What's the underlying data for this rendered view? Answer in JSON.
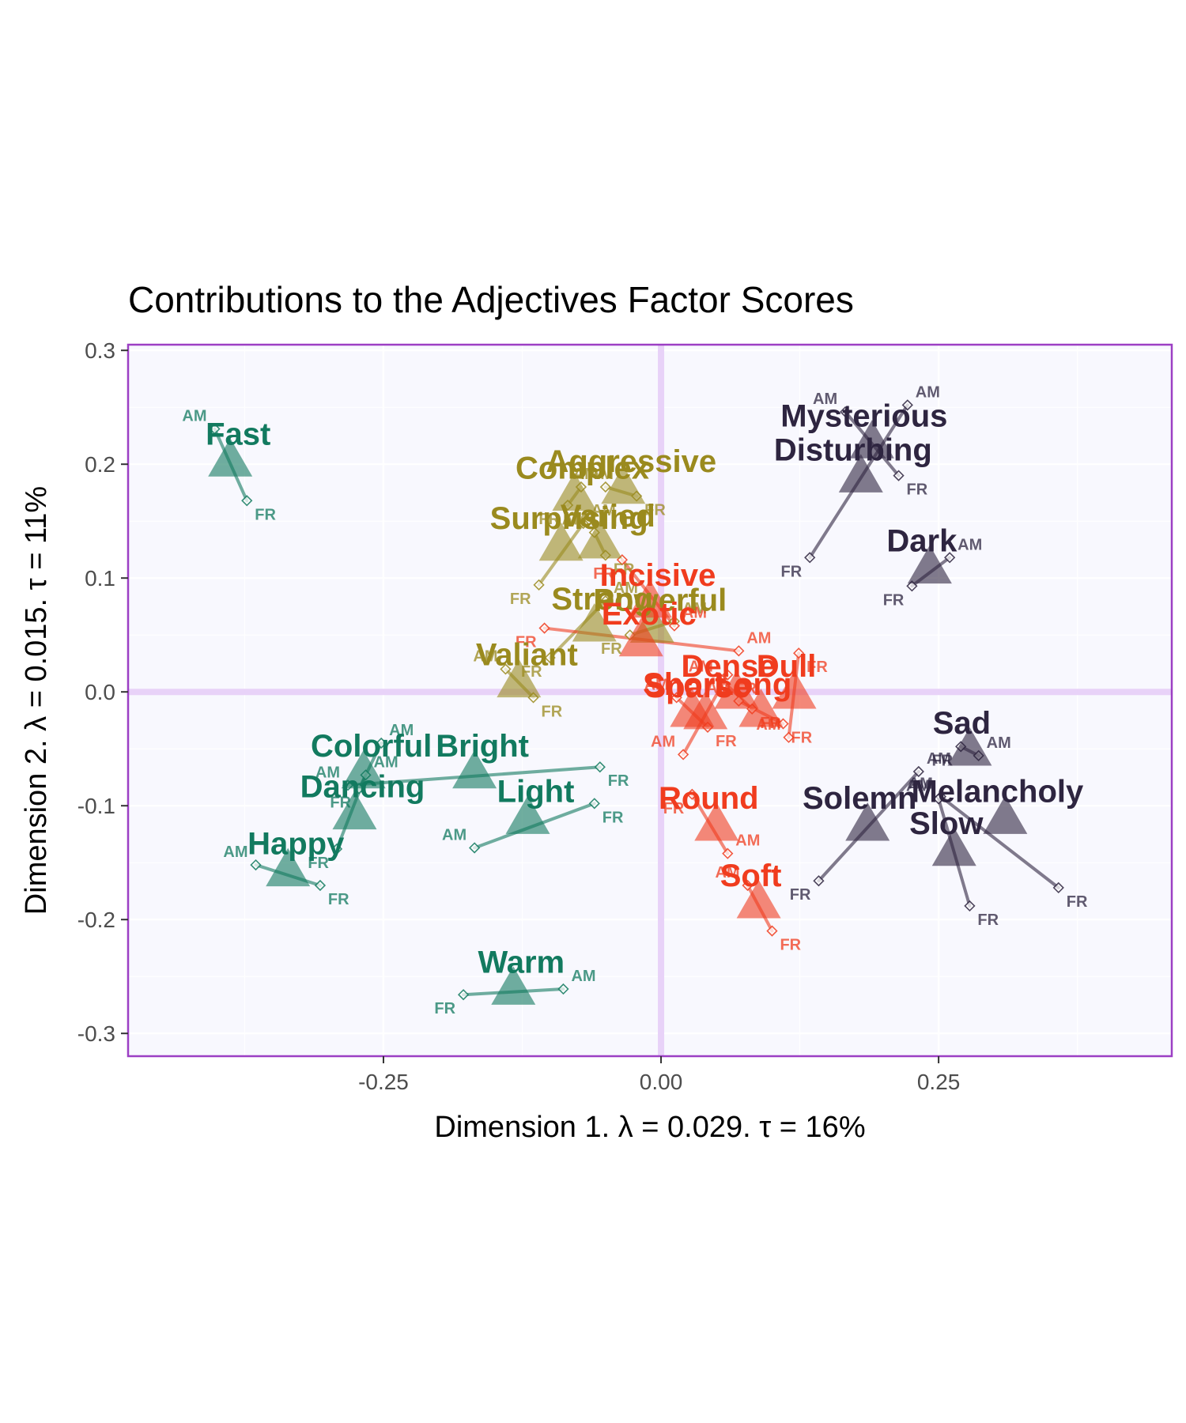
{
  "chart_data": {
    "type": "scatter",
    "title": "Contributions to the Adjectives Factor Scores",
    "xlabel": "Dimension 1.   λ = 0.029.  τ = 16%",
    "ylabel": "Dimension 2.   λ = 0.015.  τ = 11%",
    "xlim": [
      -0.48,
      0.46
    ],
    "ylim": [
      -0.32,
      0.305
    ],
    "x_ticks": [
      -0.25,
      0.0,
      0.25
    ],
    "x_tick_labels": [
      "-0.25",
      "0.00",
      "0.25"
    ],
    "y_ticks": [
      0.3,
      0.2,
      0.1,
      0.0,
      -0.1,
      -0.2,
      -0.3
    ],
    "y_tick_labels": [
      "0.3",
      "0.2",
      "0.1",
      "0.0",
      "-0.1",
      "-0.2",
      "-0.3"
    ],
    "grid": true,
    "origin_lines": true,
    "lang_labels": [
      "AM",
      "FR"
    ],
    "groups": [
      {
        "color": "#127a5f",
        "points": [
          {
            "label": "Fast",
            "x": -0.388,
            "y": 0.202,
            "am": {
              "x": -0.402,
              "y": 0.231
            },
            "fr": {
              "x": -0.373,
              "y": 0.168
            }
          },
          {
            "label": "Colorful",
            "x": -0.268,
            "y": -0.072,
            "am": {
              "x": -0.252,
              "y": -0.045
            },
            "fr": {
              "x": -0.272,
              "y": -0.085
            }
          },
          {
            "label": "Bright",
            "x": -0.168,
            "y": -0.072,
            "am": {
              "x": -0.282,
              "y": -0.082
            },
            "fr": {
              "x": -0.055,
              "y": -0.066
            }
          },
          {
            "label": "Dancing",
            "x": -0.276,
            "y": -0.108,
            "am": {
              "x": -0.266,
              "y": -0.073
            },
            "fr": {
              "x": -0.292,
              "y": -0.138
            }
          },
          {
            "label": "Light",
            "x": -0.12,
            "y": -0.112,
            "am": {
              "x": -0.168,
              "y": -0.137
            },
            "fr": {
              "x": -0.06,
              "y": -0.098
            }
          },
          {
            "label": "Happy",
            "x": -0.336,
            "y": -0.158,
            "am": {
              "x": -0.365,
              "y": -0.152
            },
            "fr": {
              "x": -0.307,
              "y": -0.17
            }
          },
          {
            "label": "Warm",
            "x": -0.133,
            "y": -0.262,
            "am": {
              "x": -0.088,
              "y": -0.261
            },
            "fr": {
              "x": -0.178,
              "y": -0.266
            }
          }
        ]
      },
      {
        "color": "#9a8a1e",
        "points": [
          {
            "label": "Aggressive",
            "x": -0.034,
            "y": 0.178,
            "am": {
              "x": -0.05,
              "y": 0.18
            },
            "fr": {
              "x": -0.022,
              "y": 0.172
            }
          },
          {
            "label": "Complex",
            "x": -0.078,
            "y": 0.172,
            "am": {
              "x": -0.072,
              "y": 0.18
            },
            "fr": {
              "x": -0.084,
              "y": 0.164
            }
          },
          {
            "label": "Surprising",
            "x": -0.09,
            "y": 0.128,
            "am": {
              "x": -0.07,
              "y": 0.148
            },
            "fr": {
              "x": -0.11,
              "y": 0.094
            }
          },
          {
            "label": "Varied",
            "x": -0.055,
            "y": 0.13,
            "am": {
              "x": -0.06,
              "y": 0.14
            },
            "fr": {
              "x": -0.05,
              "y": 0.12
            }
          },
          {
            "label": "Powerful",
            "x": -0.008,
            "y": 0.056,
            "am": {
              "x": 0.012,
              "y": 0.062
            },
            "fr": {
              "x": -0.028,
              "y": 0.05
            }
          },
          {
            "label": "Strong",
            "x": -0.06,
            "y": 0.057,
            "am": {
              "x": -0.05,
              "y": 0.08
            },
            "fr": {
              "x": -0.1,
              "y": 0.03
            }
          },
          {
            "label": "Valiant",
            "x": -0.128,
            "y": 0.008,
            "am": {
              "x": -0.14,
              "y": 0.02
            },
            "fr": {
              "x": -0.115,
              "y": -0.005
            }
          }
        ]
      },
      {
        "color": "#f03c1e",
        "points": [
          {
            "label": "Incisive",
            "x": -0.01,
            "y": 0.078,
            "am": {
              "x": 0.012,
              "y": 0.058
            },
            "fr": {
              "x": -0.035,
              "y": 0.116
            }
          },
          {
            "label": "Exotic",
            "x": -0.018,
            "y": 0.044,
            "am": {
              "x": 0.07,
              "y": 0.036
            },
            "fr": {
              "x": -0.105,
              "y": 0.056
            }
          },
          {
            "label": "Dense",
            "x": 0.068,
            "y": -0.002,
            "am": {
              "x": 0.054,
              "y": 0.011
            },
            "fr": {
              "x": 0.082,
              "y": -0.015
            }
          },
          {
            "label": "Short",
            "x": 0.028,
            "y": -0.018,
            "am": {
              "x": 0.014,
              "y": -0.005
            },
            "fr": {
              "x": 0.042,
              "y": -0.031
            }
          },
          {
            "label": "Dull",
            "x": 0.12,
            "y": -0.002,
            "am": {
              "x": 0.115,
              "y": -0.04
            },
            "fr": {
              "x": 0.124,
              "y": 0.034
            }
          },
          {
            "label": "Long",
            "x": 0.09,
            "y": -0.018,
            "am": {
              "x": 0.07,
              "y": -0.008
            },
            "fr": {
              "x": 0.11,
              "y": -0.028
            }
          },
          {
            "label": "Sparse",
            "x": 0.04,
            "y": -0.02,
            "am": {
              "x": 0.02,
              "y": -0.055
            },
            "fr": {
              "x": 0.06,
              "y": 0.015
            }
          },
          {
            "label": "Round",
            "x": 0.05,
            "y": -0.118,
            "am": {
              "x": 0.06,
              "y": -0.142
            },
            "fr": {
              "x": 0.028,
              "y": -0.09
            }
          },
          {
            "label": "Soft",
            "x": 0.088,
            "y": -0.186,
            "am": {
              "x": 0.078,
              "y": -0.17
            },
            "fr": {
              "x": 0.1,
              "y": -0.21
            }
          }
        ]
      },
      {
        "color": "#2e2540",
        "points": [
          {
            "label": "Mysterious",
            "x": 0.19,
            "y": 0.218,
            "am": {
              "x": 0.166,
              "y": 0.246
            },
            "fr": {
              "x": 0.214,
              "y": 0.19
            }
          },
          {
            "label": "Disturbing",
            "x": 0.18,
            "y": 0.188,
            "am": {
              "x": 0.222,
              "y": 0.252
            },
            "fr": {
              "x": 0.134,
              "y": 0.118
            }
          },
          {
            "label": "Dark",
            "x": 0.242,
            "y": 0.108,
            "am": {
              "x": 0.26,
              "y": 0.118
            },
            "fr": {
              "x": 0.226,
              "y": 0.093
            }
          },
          {
            "label": "Sad",
            "x": 0.278,
            "y": -0.052,
            "am": {
              "x": 0.286,
              "y": -0.056
            },
            "fr": {
              "x": 0.27,
              "y": -0.048
            }
          },
          {
            "label": "Melancholy",
            "x": 0.31,
            "y": -0.112,
            "am": {
              "x": 0.252,
              "y": -0.092
            },
            "fr": {
              "x": 0.358,
              "y": -0.172
            }
          },
          {
            "label": "Solemn",
            "x": 0.186,
            "y": -0.118,
            "am": {
              "x": 0.232,
              "y": -0.07
            },
            "fr": {
              "x": 0.142,
              "y": -0.166
            }
          },
          {
            "label": "Slow",
            "x": 0.264,
            "y": -0.14,
            "am": {
              "x": 0.25,
              "y": -0.094
            },
            "fr": {
              "x": 0.278,
              "y": -0.188
            }
          }
        ]
      }
    ]
  }
}
